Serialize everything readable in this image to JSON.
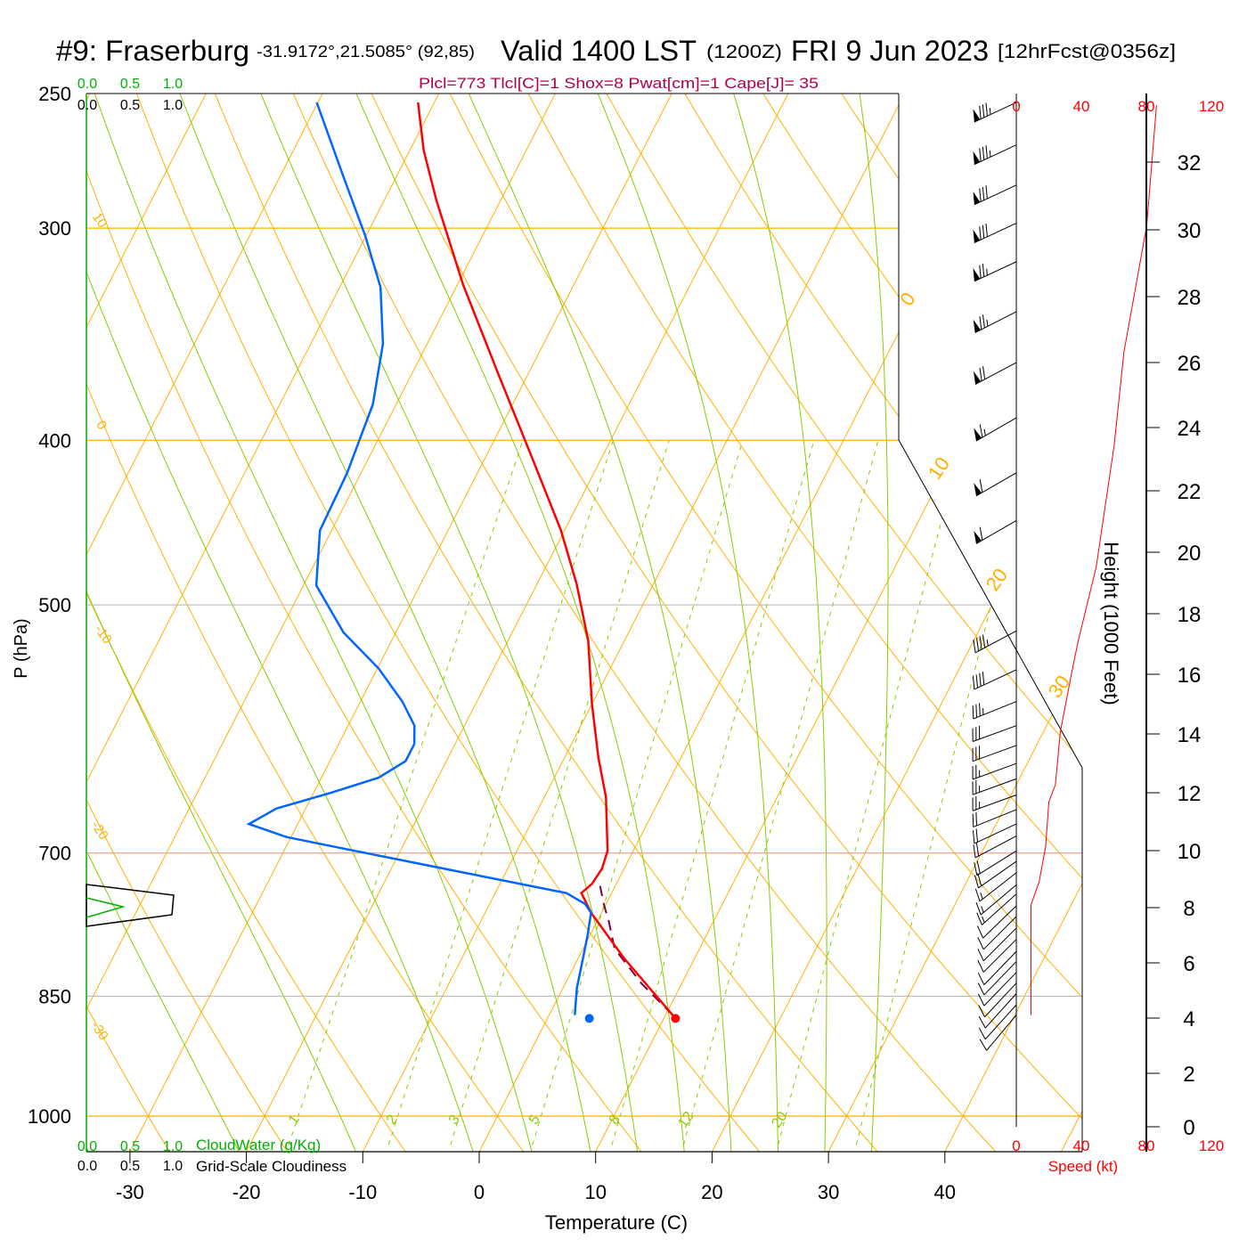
{
  "title": {
    "station": "#9: Fraserburg",
    "coords": "-31.9172°,21.5085° (92,85)",
    "valid": "Valid 1400 LST",
    "zulu": "(1200Z)",
    "date": "FRI 9 Jun 2023",
    "forecast": "[12hrFcst@0356z]"
  },
  "indices": "Plcl=773 Tlcl[C]=1 Shox=8 Pwat[cm]=1 Cape[J]= 35",
  "colors": {
    "temperature": "#ff0000",
    "dewpoint": "#0066ff",
    "parcel": "#800040",
    "isotherm": "#ffb000",
    "moist": "#88cc00",
    "cloudwater": "#00b000",
    "speed": "#ff0000"
  },
  "cloud_scale": {
    "top_green": [
      "0.0",
      "0.5",
      "1.0"
    ],
    "top_black": [
      "0.0",
      "0.5",
      "1.0"
    ],
    "bottom_green": [
      "0.0",
      "0.5",
      "1.0"
    ],
    "bottom_black": [
      "0.0",
      "0.5",
      "1.0"
    ],
    "cloudwater_label": "CloudWater (g/Kg)",
    "cloudiness_label": "Grid-Scale Cloudiness"
  },
  "speed_axis": {
    "labels": [
      "0",
      "40",
      "80",
      "120"
    ],
    "title": "Speed (kt)"
  },
  "height_axis": {
    "labels": [
      "0",
      "2",
      "4",
      "6",
      "8",
      "10",
      "12",
      "14",
      "16",
      "18",
      "20",
      "22",
      "24",
      "26",
      "28",
      "30",
      "32"
    ],
    "title": "Height (1000 Feet)"
  },
  "chart_data": {
    "type": "skew-t",
    "xlabel": "Temperature (C)",
    "ylabel": "P (hPa)",
    "pressure_ticks": [
      "250",
      "300",
      "400",
      "500",
      "700",
      "850",
      "1000"
    ],
    "temperature_ticks": [
      "-30",
      "-20",
      "-10",
      "0",
      "10",
      "20",
      "30",
      "40"
    ],
    "isotherm_labels": [
      "0",
      "10",
      "20",
      "30"
    ],
    "dry_adiabat_labels": [
      "10",
      "0",
      "-10",
      "-20",
      "-30"
    ],
    "mixing_ratio_labels": [
      "1",
      "2",
      "3",
      "5",
      "8",
      "12",
      "20"
    ],
    "temperature_profile": [
      [
        876,
        11.0
      ],
      [
        807,
        3.9
      ],
      [
        759,
        -0.9
      ],
      [
        739,
        -2.6
      ],
      [
        730,
        -2.1
      ],
      [
        715,
        -1.9
      ],
      [
        698,
        -2.2
      ],
      [
        649,
        -4.7
      ],
      [
        615,
        -7.1
      ],
      [
        572,
        -10.0
      ],
      [
        525,
        -13.1
      ],
      [
        486,
        -16.6
      ],
      [
        452,
        -20.3
      ],
      [
        413,
        -25.5
      ],
      [
        366,
        -32.5
      ],
      [
        324,
        -39.5
      ],
      [
        289,
        -45.5
      ],
      [
        270,
        -48.8
      ],
      [
        253,
        -51.4
      ]
    ],
    "dewpoint_profile": [
      [
        872,
        2.2
      ],
      [
        841,
        1.2
      ],
      [
        807,
        0.4
      ],
      [
        783,
        -0.2
      ],
      [
        759,
        -0.9
      ],
      [
        750,
        -1.8
      ],
      [
        739,
        -3.9
      ],
      [
        695,
        -25.4
      ],
      [
        685,
        -30.4
      ],
      [
        673,
        -34.2
      ],
      [
        659,
        -32.5
      ],
      [
        645,
        -28.5
      ],
      [
        632,
        -25.1
      ],
      [
        618,
        -23.5
      ],
      [
        604,
        -23.5
      ],
      [
        589,
        -24.3
      ],
      [
        570,
        -26.4
      ],
      [
        545,
        -29.9
      ],
      [
        519,
        -34.5
      ],
      [
        487,
        -38.9
      ],
      [
        452,
        -41.0
      ],
      [
        418,
        -41.2
      ],
      [
        381,
        -42.0
      ],
      [
        351,
        -43.8
      ],
      [
        325,
        -46.5
      ],
      [
        303,
        -50.1
      ],
      [
        279,
        -54.7
      ],
      [
        253,
        -60.1
      ]
    ],
    "parcel_profile": [
      [
        872,
        10.6
      ],
      [
        836,
        6.6
      ],
      [
        797,
        2.7
      ],
      [
        768,
        1.0
      ],
      [
        750,
        -0.2
      ],
      [
        732,
        -1.3
      ]
    ],
    "surface": {
      "pressure": 876,
      "temperature": 11.0,
      "dewpoint": 3.6
    },
    "wind_speed_profile": [
      [
        872,
        9
      ],
      [
        751,
        9
      ],
      [
        728,
        14
      ],
      [
        694,
        18
      ],
      [
        653,
        20
      ],
      [
        638,
        24
      ],
      [
        594,
        27
      ],
      [
        548,
        34
      ],
      [
        525,
        38
      ],
      [
        475,
        49
      ],
      [
        403,
        60
      ],
      [
        355,
        66
      ],
      [
        299,
        80
      ],
      [
        254,
        86
      ]
    ],
    "winds": [
      [
        253,
        245,
        86
      ],
      [
        268,
        245,
        84
      ],
      [
        283,
        245,
        82
      ],
      [
        298,
        245,
        80
      ],
      [
        314,
        245,
        77
      ],
      [
        336,
        243,
        73
      ],
      [
        360,
        242,
        70
      ],
      [
        388,
        240,
        66
      ],
      [
        418,
        240,
        62
      ],
      [
        446,
        240,
        58
      ],
      [
        518,
        242,
        45
      ],
      [
        546,
        245,
        40
      ],
      [
        570,
        248,
        34
      ],
      [
        589,
        250,
        30
      ],
      [
        605,
        250,
        28
      ],
      [
        620,
        250,
        27
      ],
      [
        633,
        250,
        25
      ],
      [
        647,
        250,
        23
      ],
      [
        660,
        248,
        22
      ],
      [
        673,
        245,
        21
      ],
      [
        684,
        242,
        20
      ],
      [
        698,
        238,
        19
      ],
      [
        708,
        235,
        18
      ],
      [
        719,
        232,
        16
      ],
      [
        731,
        230,
        15
      ],
      [
        740,
        228,
        13
      ],
      [
        752,
        226,
        12
      ],
      [
        763,
        225,
        11
      ],
      [
        775,
        225,
        10
      ],
      [
        787,
        225,
        10
      ],
      [
        800,
        224,
        10
      ],
      [
        811,
        224,
        10
      ],
      [
        823,
        224,
        10
      ],
      [
        835,
        223,
        10
      ],
      [
        847,
        222,
        10
      ],
      [
        860,
        222,
        10
      ],
      [
        872,
        220,
        9
      ]
    ],
    "cloud_layer": {
      "pressure_top": 735,
      "pressure_bottom": 765,
      "cloudiness": 0.9,
      "cloudwater": 0.4
    }
  }
}
